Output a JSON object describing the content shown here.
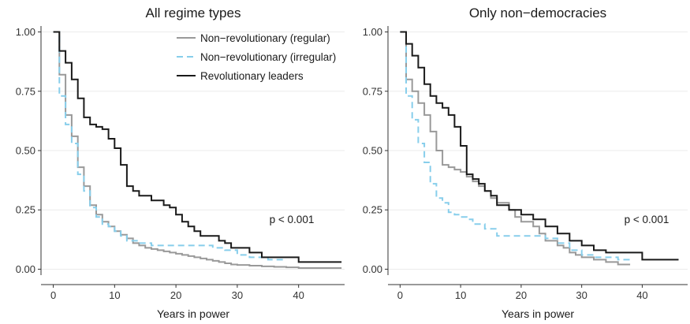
{
  "chart_data": [
    {
      "type": "line",
      "step": true,
      "title": "All regime types",
      "xlabel": "Years in power",
      "ylabel": "",
      "xlim": [
        -2,
        47.5
      ],
      "ylim": [
        -0.025,
        1.025
      ],
      "xticks": [
        0,
        10,
        20,
        30,
        40
      ],
      "yticks": [
        0,
        0.25,
        0.5,
        0.75,
        1
      ],
      "ytick_labels": [
        "0.00",
        "0.25",
        "0.50",
        "0.75",
        "1.00"
      ],
      "grid": true,
      "annotation": "p < 0.001",
      "legend": {
        "placement": "top-right",
        "entries": [
          {
            "label": "Non−revolutionary (regular)",
            "series": 0
          },
          {
            "label": "Non−revolutionary (irregular)",
            "series": 1
          },
          {
            "label": "Revolutionary leaders",
            "series": 2
          }
        ]
      },
      "series": [
        {
          "name": "Non−revolutionary (regular)",
          "color": "#999999",
          "dash": "solid",
          "x": [
            0,
            1,
            2,
            3,
            4,
            5,
            6,
            7,
            8,
            9,
            10,
            11,
            12,
            13,
            14,
            15,
            16,
            17,
            18,
            19,
            20,
            21,
            22,
            23,
            24,
            25,
            26,
            27,
            28,
            29,
            30,
            32,
            34,
            36,
            38,
            40,
            47
          ],
          "y": [
            1.0,
            0.82,
            0.65,
            0.56,
            0.43,
            0.35,
            0.27,
            0.23,
            0.2,
            0.18,
            0.16,
            0.145,
            0.13,
            0.11,
            0.1,
            0.09,
            0.085,
            0.08,
            0.075,
            0.07,
            0.065,
            0.06,
            0.055,
            0.05,
            0.045,
            0.04,
            0.035,
            0.03,
            0.025,
            0.02,
            0.018,
            0.015,
            0.012,
            0.01,
            0.008,
            0.005,
            0.005
          ]
        },
        {
          "name": "Non−revolutionary (irregular)",
          "color": "#87ceeb",
          "dash": "dashed",
          "x": [
            0,
            1,
            2,
            3,
            4,
            5,
            6,
            7,
            8,
            9,
            10,
            11,
            12,
            14,
            16,
            18,
            22,
            26,
            28,
            30,
            32,
            35,
            38
          ],
          "y": [
            1.0,
            0.73,
            0.61,
            0.53,
            0.4,
            0.33,
            0.26,
            0.22,
            0.19,
            0.18,
            0.16,
            0.14,
            0.12,
            0.11,
            0.1,
            0.1,
            0.1,
            0.09,
            0.08,
            0.06,
            0.05,
            0.04,
            0.04
          ]
        },
        {
          "name": "Revolutionary leaders",
          "color": "#1a1a1a",
          "dash": "solid",
          "x": [
            0,
            1,
            2,
            3,
            4,
            5,
            6,
            7,
            8,
            9,
            10,
            11,
            12,
            13,
            14,
            16,
            18,
            19,
            20,
            21,
            22,
            23,
            24,
            27,
            28,
            29,
            30,
            32,
            34,
            40,
            47
          ],
          "y": [
            1.0,
            0.92,
            0.87,
            0.8,
            0.72,
            0.64,
            0.61,
            0.6,
            0.59,
            0.55,
            0.51,
            0.44,
            0.35,
            0.33,
            0.31,
            0.29,
            0.27,
            0.26,
            0.23,
            0.2,
            0.18,
            0.16,
            0.14,
            0.12,
            0.11,
            0.09,
            0.09,
            0.07,
            0.05,
            0.03,
            0.03
          ]
        }
      ]
    },
    {
      "type": "line",
      "step": true,
      "title": "Only non−democracies",
      "xlabel": "Years in power",
      "ylabel": "",
      "xlim": [
        -2,
        47.5
      ],
      "ylim": [
        -0.025,
        1.025
      ],
      "xticks": [
        0,
        10,
        20,
        30,
        40
      ],
      "yticks": [
        0,
        0.25,
        0.5,
        0.75,
        1
      ],
      "ytick_labels": [
        "0.00",
        "0.25",
        "0.50",
        "0.75",
        "1.00"
      ],
      "grid": true,
      "annotation": "p < 0.001",
      "series": [
        {
          "name": "Non−revolutionary (regular)",
          "color": "#999999",
          "dash": "solid",
          "x": [
            0,
            1,
            2,
            3,
            4,
            5,
            6,
            7,
            8,
            9,
            10,
            11,
            12,
            13,
            14,
            15,
            16,
            18,
            19,
            20,
            22,
            23,
            24,
            26,
            27,
            28,
            29,
            30,
            32,
            34,
            36,
            38
          ],
          "y": [
            1.0,
            0.8,
            0.75,
            0.7,
            0.65,
            0.58,
            0.5,
            0.44,
            0.43,
            0.42,
            0.41,
            0.39,
            0.37,
            0.35,
            0.33,
            0.3,
            0.28,
            0.25,
            0.22,
            0.2,
            0.18,
            0.15,
            0.12,
            0.1,
            0.09,
            0.07,
            0.06,
            0.05,
            0.04,
            0.03,
            0.02,
            0.02
          ]
        },
        {
          "name": "Non−revolutionary (irregular)",
          "color": "#87ceeb",
          "dash": "dashed",
          "x": [
            0,
            1,
            2,
            3,
            4,
            5,
            6,
            7,
            8,
            9,
            10,
            11,
            12,
            14,
            16,
            22,
            24,
            26,
            28,
            30,
            32,
            36,
            38
          ],
          "y": [
            1.0,
            0.73,
            0.63,
            0.53,
            0.45,
            0.36,
            0.3,
            0.28,
            0.24,
            0.23,
            0.22,
            0.21,
            0.19,
            0.17,
            0.14,
            0.14,
            0.13,
            0.11,
            0.08,
            0.06,
            0.05,
            0.04,
            0.04
          ]
        },
        {
          "name": "Revolutionary leaders",
          "color": "#1a1a1a",
          "dash": "solid",
          "x": [
            0,
            1,
            2,
            3,
            4,
            5,
            6,
            7,
            8,
            9,
            10,
            11,
            12,
            13,
            14,
            15,
            16,
            18,
            20,
            22,
            24,
            26,
            28,
            30,
            32,
            34,
            40,
            46
          ],
          "y": [
            1.0,
            0.95,
            0.9,
            0.85,
            0.78,
            0.73,
            0.7,
            0.68,
            0.65,
            0.6,
            0.52,
            0.4,
            0.38,
            0.36,
            0.33,
            0.31,
            0.27,
            0.25,
            0.23,
            0.21,
            0.18,
            0.15,
            0.12,
            0.1,
            0.08,
            0.07,
            0.04,
            0.04
          ]
        }
      ]
    }
  ]
}
